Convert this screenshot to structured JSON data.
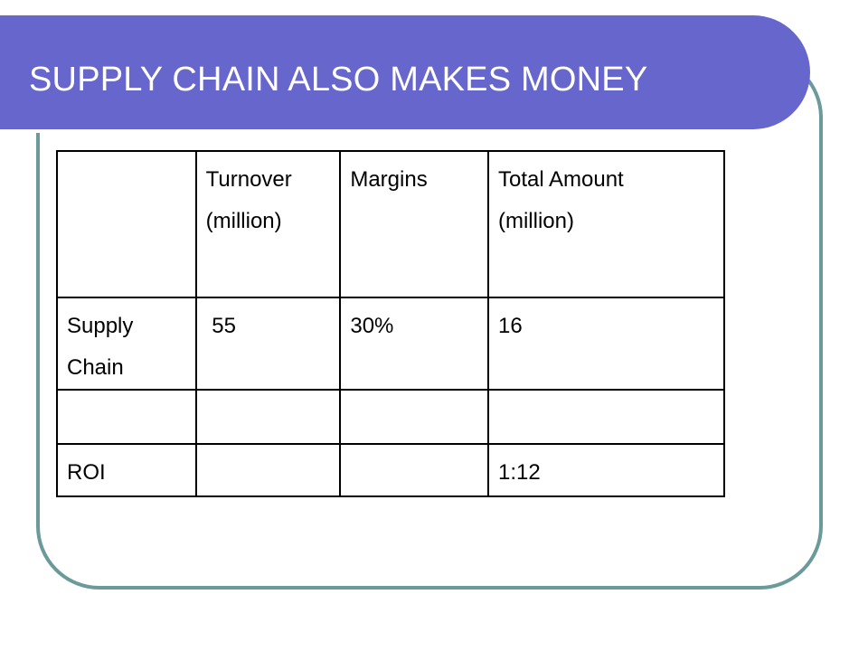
{
  "slide": {
    "title": "SUPPLY CHAIN ALSO MAKES MONEY"
  },
  "table": {
    "header": {
      "col1": "",
      "turnover_line1": "Turnover",
      "turnover_line2": "(million)",
      "margins": "Margins",
      "total_line1": "Total Amount",
      "total_line2": "(million)"
    },
    "rows": [
      {
        "label_line1": "Supply",
        "label_line2": "Chain",
        "turnover": " 55",
        "margins": "30%",
        "total": "16"
      },
      {
        "label": "",
        "turnover": "",
        "margins": "",
        "total": ""
      },
      {
        "label": "ROI",
        "turnover": "",
        "margins": "",
        "total": "1:12"
      }
    ]
  },
  "colors": {
    "title_bar": "#6666cc",
    "frame_border": "#6b9a9a",
    "title_text": "#ffffff"
  }
}
